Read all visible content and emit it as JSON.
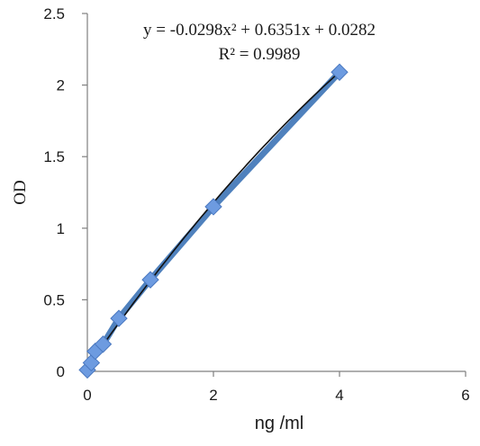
{
  "chart_data": {
    "type": "scatter",
    "xlabel": "ng /ml",
    "ylabel": "OD",
    "xlim": [
      0,
      6
    ],
    "ylim": [
      0,
      2.5
    ],
    "xticks": [
      "0",
      "2",
      "4",
      "6"
    ],
    "yticks": [
      "0",
      "0.5",
      "1",
      "1.5",
      "2",
      "2.5"
    ],
    "grid": false,
    "annotations": {
      "equation": "y = -0.0298x² + 0.6351x + 0.0282",
      "r_squared": "R² = 0.9989"
    },
    "series": [
      {
        "x": [
          0,
          0.0625,
          0.125,
          0.25,
          0.5,
          1,
          2,
          4
        ],
        "y": [
          0.01,
          0.06,
          0.14,
          0.19,
          0.37,
          0.64,
          1.15,
          2.09
        ]
      }
    ],
    "trendline": {
      "type": "polynomial",
      "coefficients": [
        -0.0298,
        0.6351,
        0.0282
      ]
    },
    "colors": {
      "marker": "#6d9be0",
      "marker_edge": "#4a78c0",
      "connector": "#4f81bd",
      "trendline": "#111111",
      "axis": "#7f7f7f"
    }
  }
}
